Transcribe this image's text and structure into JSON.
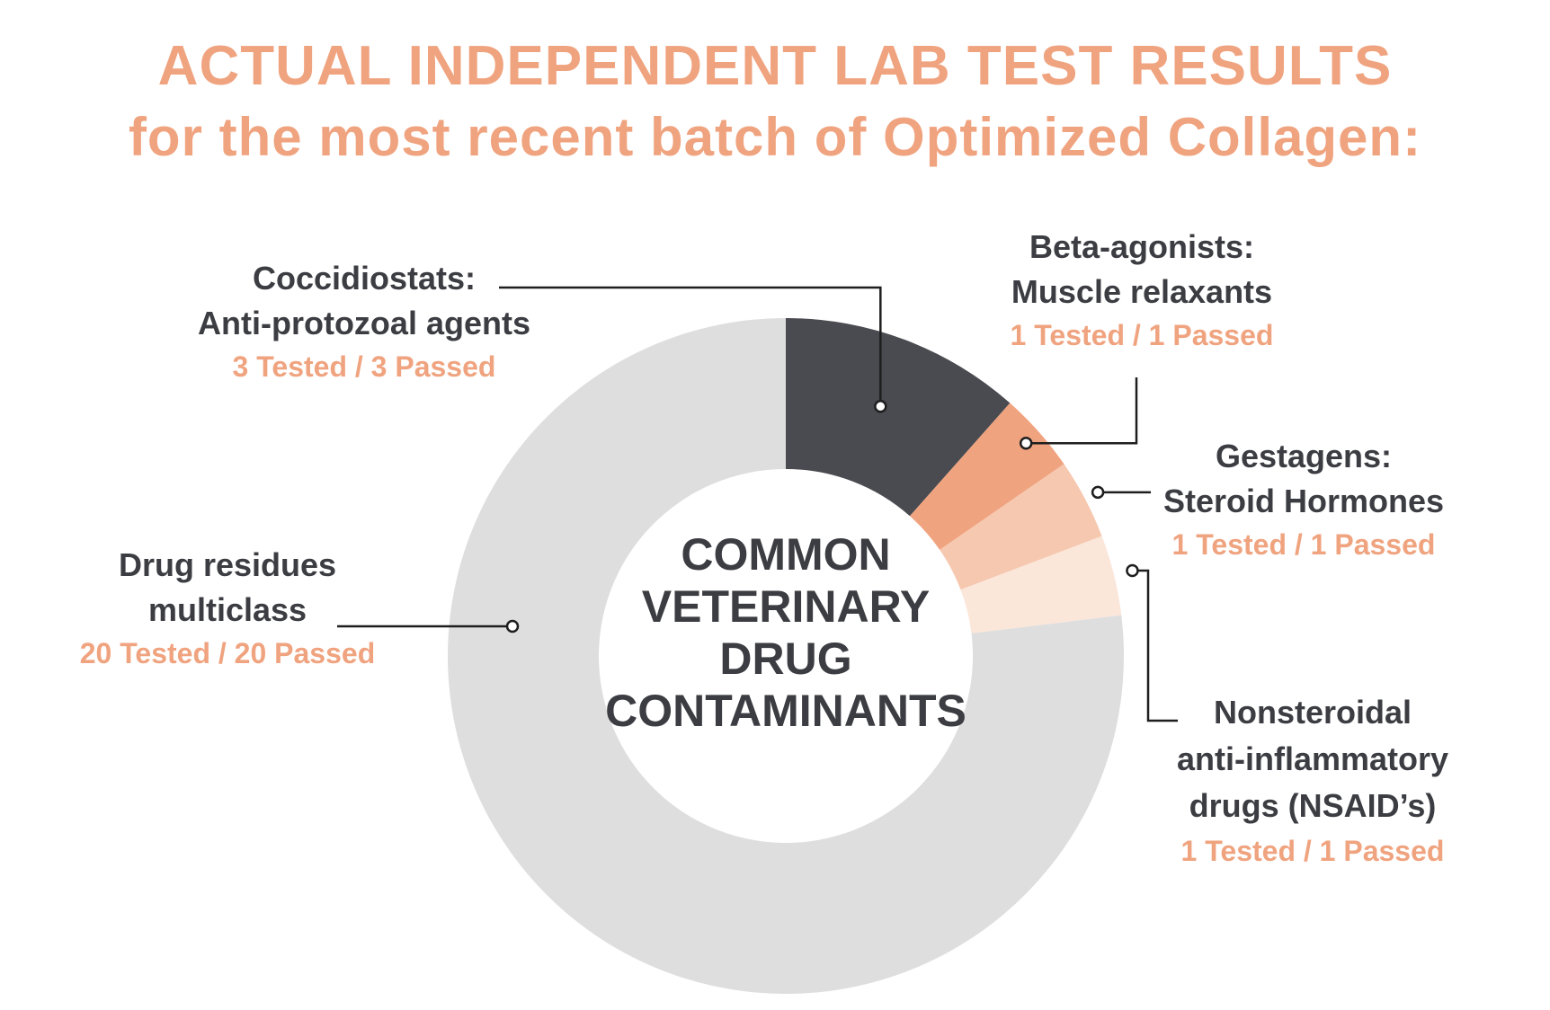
{
  "title_line1": "ACTUAL INDEPENDENT LAB TEST RESULTS",
  "title_line2": "for the most recent batch of Optimized Collagen:",
  "colors": {
    "title": "#f0a37f",
    "label": "#3c3d42",
    "count": "#f0a37f",
    "leader": "#1e1e1e"
  },
  "chart_data": {
    "type": "pie",
    "variant": "donut",
    "center_label": [
      "COMMON",
      "VETERINARY",
      "DRUG",
      "CONTAMINANTS"
    ],
    "slices": [
      {
        "label": [
          "Coccidiostats:",
          "Anti-protozoal agents"
        ],
        "tested": 3,
        "passed": 3,
        "count_text": "3 Tested / 3 Passed",
        "color": "#4a4b50"
      },
      {
        "label": [
          "Beta-agonists:",
          "Muscle relaxants"
        ],
        "tested": 1,
        "passed": 1,
        "count_text": "1 Tested / 1 Passed",
        "color": "#f0a37f"
      },
      {
        "label": [
          "Gestagens:",
          "Steroid Hormones"
        ],
        "tested": 1,
        "passed": 1,
        "count_text": "1 Tested / 1 Passed",
        "color": "#f6c8b0"
      },
      {
        "label": [
          "Nonsteroidal",
          "anti-inflammatory",
          "drugs (NSAID’s)"
        ],
        "tested": 1,
        "passed": 1,
        "count_text": "1 Tested / 1 Passed",
        "color": "#fbe6da"
      },
      {
        "label": [
          "Drug residues",
          "multiclass"
        ],
        "tested": 20,
        "passed": 20,
        "count_text": "20 Tested / 20 Passed",
        "color": "#dededf"
      }
    ]
  }
}
